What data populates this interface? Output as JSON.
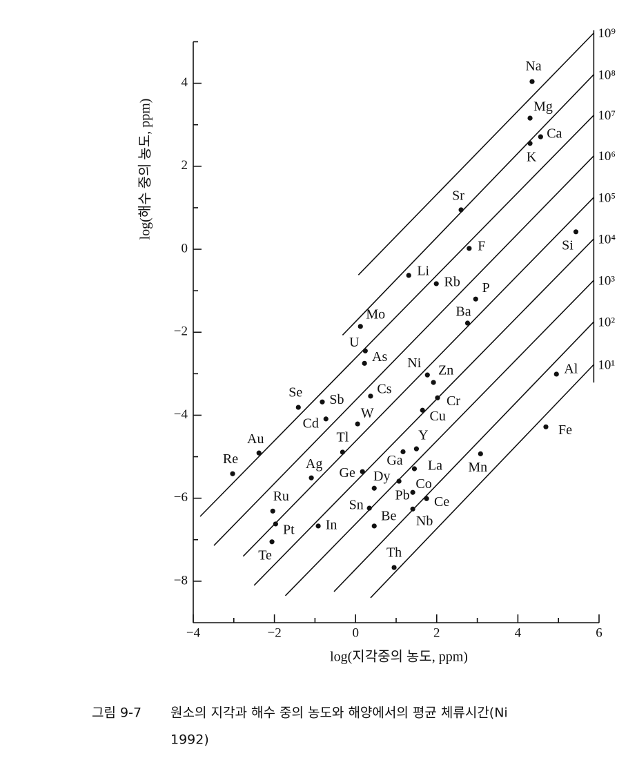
{
  "chart_data": {
    "type": "scatter",
    "x_label": "log(지각중의 농도, ppm)",
    "y_label": "log(해수 중의 농도, ppm)",
    "xlim": [
      -4,
      6
    ],
    "ylim": [
      -9,
      5
    ],
    "xticks": [
      {
        "value": -4,
        "label": "−4"
      },
      {
        "value": -2,
        "label": "−2"
      },
      0,
      2,
      4,
      6
    ],
    "xminorticks": [
      -3,
      -1,
      1,
      3,
      5
    ],
    "yticks": [
      4,
      2,
      0,
      {
        "value": -2,
        "label": "−2"
      },
      {
        "value": -4,
        "label": "−4"
      },
      {
        "value": -6,
        "label": "−6"
      },
      {
        "value": -8,
        "label": "−8"
      }
    ],
    "yminorticks": [
      5,
      3,
      1,
      -1,
      -3,
      -5,
      -7
    ],
    "color": "#111111",
    "labels": [
      "Na",
      "Mg",
      "Ca",
      "K",
      "Sr",
      "Si",
      "F",
      "Li",
      "Rb",
      "P",
      "Ba",
      "Mo",
      "U",
      "As",
      "Ni",
      "Zn",
      "Al",
      "Cs",
      "Sb",
      "Se",
      "Cr",
      "Cu",
      "Cd",
      "W",
      "Fe",
      "Y",
      "Tl",
      "Au",
      "Ga",
      "Mn",
      "Re",
      "La",
      "Ge",
      "Ag",
      "Pb",
      "Dy",
      "Co",
      "Ce",
      "Sn",
      "Nb",
      "Be",
      "Th",
      "Ru",
      "Pt",
      "In",
      "Te"
    ],
    "x": [
      4.35,
      4.3,
      4.56,
      4.3,
      2.6,
      5.43,
      2.8,
      1.31,
      1.99,
      2.96,
      2.76,
      0.12,
      0.24,
      0.22,
      1.77,
      1.92,
      4.95,
      0.37,
      -0.82,
      -1.41,
      2.02,
      1.65,
      -0.73,
      0.05,
      4.69,
      1.5,
      -0.32,
      -2.38,
      1.17,
      3.08,
      -3.03,
      1.45,
      0.17,
      -1.09,
      1.07,
      0.46,
      1.41,
      1.75,
      0.34,
      1.41,
      0.46,
      0.95,
      -2.04,
      -1.97,
      -0.92,
      -2.06
    ],
    "values": [
      4.04,
      3.16,
      2.71,
      2.55,
      0.95,
      0.42,
      0.02,
      -0.63,
      -0.83,
      -1.2,
      -1.78,
      -1.86,
      -2.45,
      -2.75,
      -3.03,
      -3.21,
      -3.01,
      -3.54,
      -3.68,
      -3.81,
      -3.58,
      -3.88,
      -4.09,
      -4.21,
      -4.28,
      -4.81,
      -4.89,
      -4.91,
      -4.88,
      -4.93,
      -5.41,
      -5.29,
      -5.36,
      -5.51,
      -5.59,
      -5.76,
      -5.86,
      -6.01,
      -6.24,
      -6.26,
      -6.67,
      -7.67,
      -6.31,
      -6.62,
      -6.67,
      -7.05
    ],
    "residence_lines": [
      {
        "label": "10⁹",
        "x": [
          0.07,
          5.87
        ],
        "y": [
          -0.62,
          5.21
        ]
      },
      {
        "label": "10⁸",
        "x": [
          -0.32,
          5.87
        ],
        "y": [
          -2.07,
          4.21
        ]
      },
      {
        "label": "10⁷",
        "x": [
          -3.83,
          5.87
        ],
        "y": [
          -6.44,
          3.23
        ]
      },
      {
        "label": "10⁶",
        "x": [
          -3.49,
          5.87
        ],
        "y": [
          -7.14,
          2.25
        ]
      },
      {
        "label": "10⁵",
        "x": [
          -2.77,
          5.87
        ],
        "y": [
          -7.4,
          1.25
        ]
      },
      {
        "label": "10⁴",
        "x": [
          -2.5,
          5.87
        ],
        "y": [
          -8.1,
          0.25
        ]
      },
      {
        "label": "10³",
        "x": [
          -1.73,
          5.87
        ],
        "y": [
          -8.35,
          -0.75
        ]
      },
      {
        "label": "10²",
        "x": [
          -0.53,
          5.87
        ],
        "y": [
          -8.25,
          -1.75
        ]
      },
      {
        "label": "10¹",
        "x": [
          0.37,
          5.87
        ],
        "y": [
          -8.4,
          -2.78
        ]
      }
    ]
  },
  "caption": {
    "number": "그림 9-7",
    "lines": [
      "원소의 지각과 해수 중의 농도와 해양에서의 평균 체류시간(Ni",
      "1992)"
    ]
  }
}
